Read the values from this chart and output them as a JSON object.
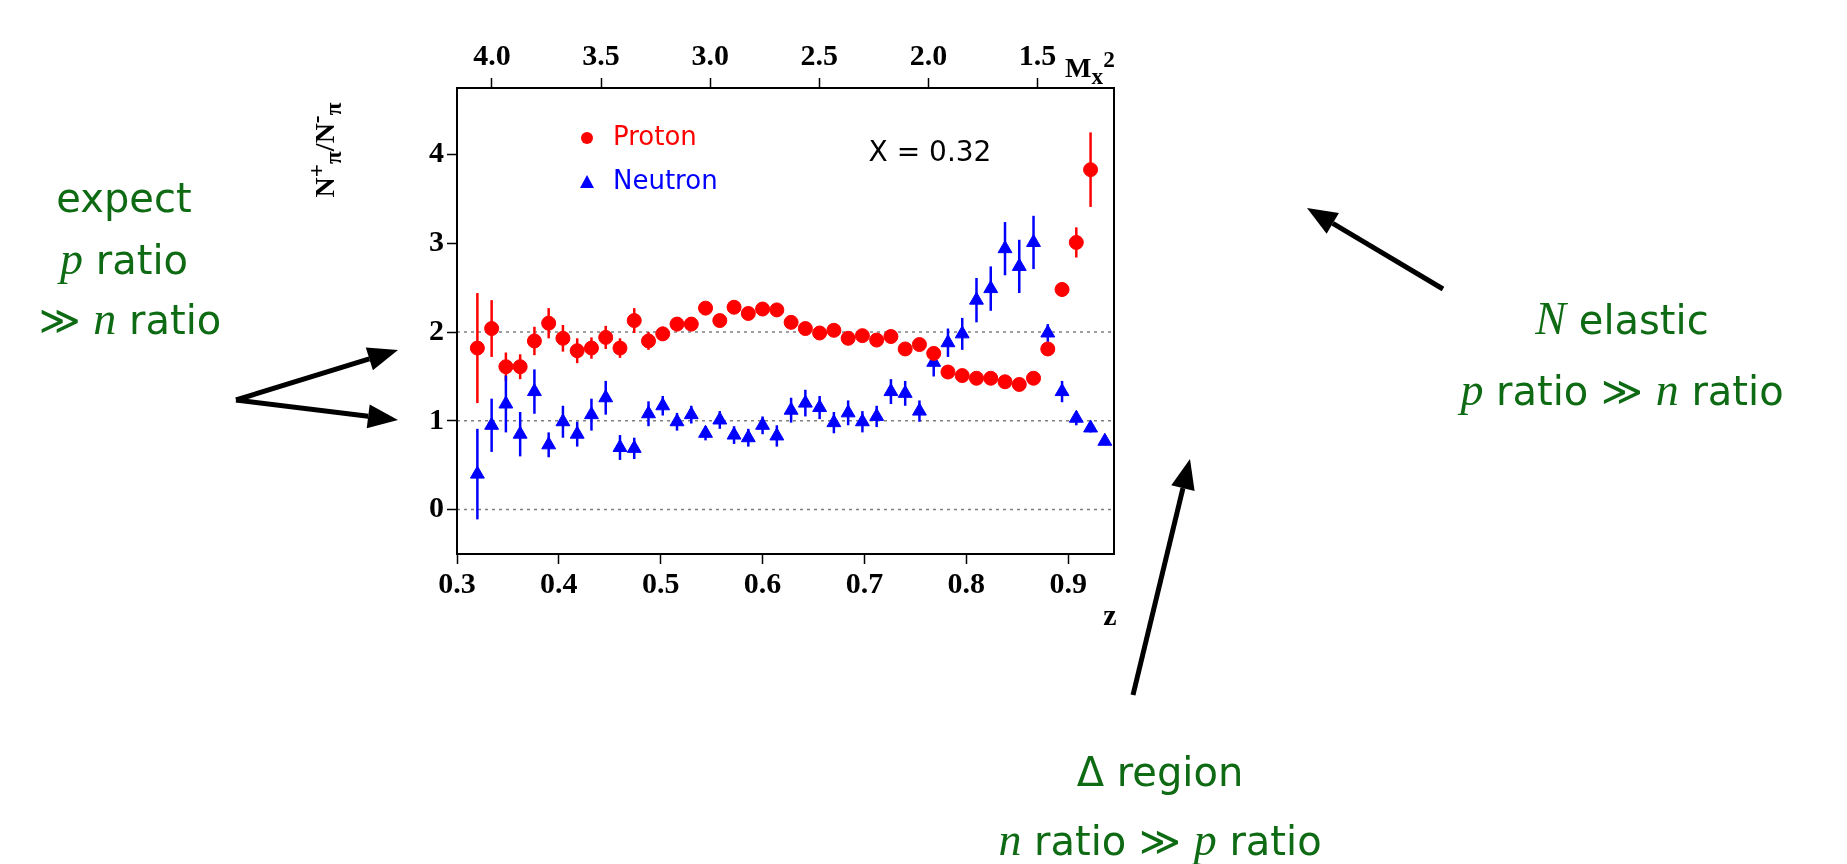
{
  "chart_data": {
    "type": "scatter",
    "ylabel": "N$^{+}$$_{π}$/N$^{-}$$_{π}$",
    "xlabel": "z",
    "x2label": "M$_{x}$$^{2}$",
    "x": [
      0.32,
      0.334,
      0.348,
      0.362,
      0.376,
      0.39,
      0.404,
      0.418,
      0.432,
      0.446,
      0.46,
      0.474,
      0.488,
      0.502,
      0.516,
      0.53,
      0.544,
      0.558,
      0.572,
      0.586,
      0.6,
      0.614,
      0.628,
      0.642,
      0.656,
      0.67,
      0.684,
      0.698,
      0.712,
      0.726,
      0.74,
      0.754,
      0.768,
      0.782,
      0.796,
      0.81,
      0.824,
      0.838,
      0.852,
      0.866,
      0.88,
      0.894,
      0.908,
      0.922,
      0.936
    ],
    "series": [
      {
        "name": "Proton",
        "color": "#ff0000",
        "marker": "circle",
        "values": [
          1.82,
          2.04,
          1.61,
          1.61,
          1.9,
          2.1,
          1.93,
          1.79,
          1.82,
          1.94,
          1.82,
          2.13,
          1.9,
          1.98,
          2.09,
          2.09,
          2.27,
          2.13,
          2.28,
          2.21,
          2.26,
          2.25,
          2.11,
          2.04,
          1.99,
          2.02,
          1.93,
          1.96,
          1.91,
          1.95,
          1.81,
          1.86,
          1.76,
          1.55,
          1.51,
          1.48,
          1.48,
          1.44,
          1.41,
          1.48,
          1.81,
          2.48,
          3.01,
          3.83,
          null
        ],
        "errors": [
          0.62,
          0.32,
          0.16,
          0.14,
          0.16,
          0.17,
          0.15,
          0.14,
          0.12,
          0.13,
          0.11,
          0.14,
          0.1,
          0.08,
          0.08,
          0.08,
          0.07,
          0.07,
          0.07,
          0.07,
          0.07,
          0.07,
          0.07,
          0.07,
          0.06,
          0.07,
          0.06,
          0.06,
          0.06,
          0.06,
          0.05,
          0.05,
          0.05,
          0.04,
          0.04,
          0.04,
          0.04,
          0.04,
          0.04,
          0.04,
          0.06,
          0.08,
          0.17,
          0.42,
          null
        ]
      },
      {
        "name": "Neutron",
        "color": "#0000ff",
        "marker": "triangle",
        "values": [
          0.4,
          0.95,
          1.19,
          0.85,
          1.33,
          0.73,
          0.99,
          0.85,
          1.07,
          1.26,
          0.7,
          0.69,
          1.08,
          1.17,
          0.99,
          1.07,
          0.86,
          1.01,
          0.84,
          0.81,
          0.95,
          0.83,
          1.12,
          1.2,
          1.15,
          0.98,
          1.09,
          0.99,
          1.05,
          1.33,
          1.31,
          1.11,
          1.66,
          1.88,
          1.98,
          2.36,
          2.49,
          2.94,
          2.74,
          3.01,
          1.99,
          1.33,
          1.03,
          0.92,
          0.77
        ],
        "errors": [
          0.51,
          0.3,
          0.32,
          0.25,
          0.25,
          0.14,
          0.18,
          0.14,
          0.18,
          0.19,
          0.14,
          0.12,
          0.14,
          0.11,
          0.1,
          0.1,
          0.08,
          0.1,
          0.1,
          0.1,
          0.1,
          0.12,
          0.14,
          0.15,
          0.13,
          0.12,
          0.14,
          0.12,
          0.12,
          0.14,
          0.14,
          0.12,
          0.16,
          0.16,
          0.18,
          0.25,
          0.25,
          0.3,
          0.3,
          0.3,
          0.1,
          0.12,
          0.08,
          0.05,
          0.04
        ]
      }
    ],
    "xlim": [
      0.3,
      0.945
    ],
    "xticks": [
      0.3,
      0.4,
      0.5,
      0.6,
      0.7,
      0.8,
      0.9
    ],
    "x2lim": [
      4.16,
      1.15
    ],
    "x2ticks": [
      {
        "value": 4,
        "label": "4.0"
      },
      {
        "value": 3.5,
        "label": "3.5"
      },
      {
        "value": 3,
        "label": "3.0"
      },
      {
        "value": 2.5,
        "label": "2.5"
      },
      {
        "value": 2,
        "label": "2.0"
      },
      {
        "value": 1.5,
        "label": "1.5"
      }
    ],
    "ylim": [
      -0.5,
      4.75
    ],
    "yticks": [
      0,
      1,
      2,
      3,
      4
    ],
    "ref_lines": [
      {
        "axis": "y",
        "value": 0,
        "color": "#808080",
        "line_style": "dotted"
      },
      {
        "axis": "y",
        "value": 1,
        "color": "#808080",
        "line_style": "dotted"
      },
      {
        "axis": "y",
        "value": 2,
        "color": "#808080",
        "line_style": "dotted"
      }
    ],
    "legend": "top left",
    "annotations": [
      "X = 0.32",
      "expect",
      "p ratio",
      "≫ n ratio",
      "N elastic",
      "p ratio ≫ n ratio",
      "Δ region",
      "n ratio ≫ p ratio"
    ]
  }
}
